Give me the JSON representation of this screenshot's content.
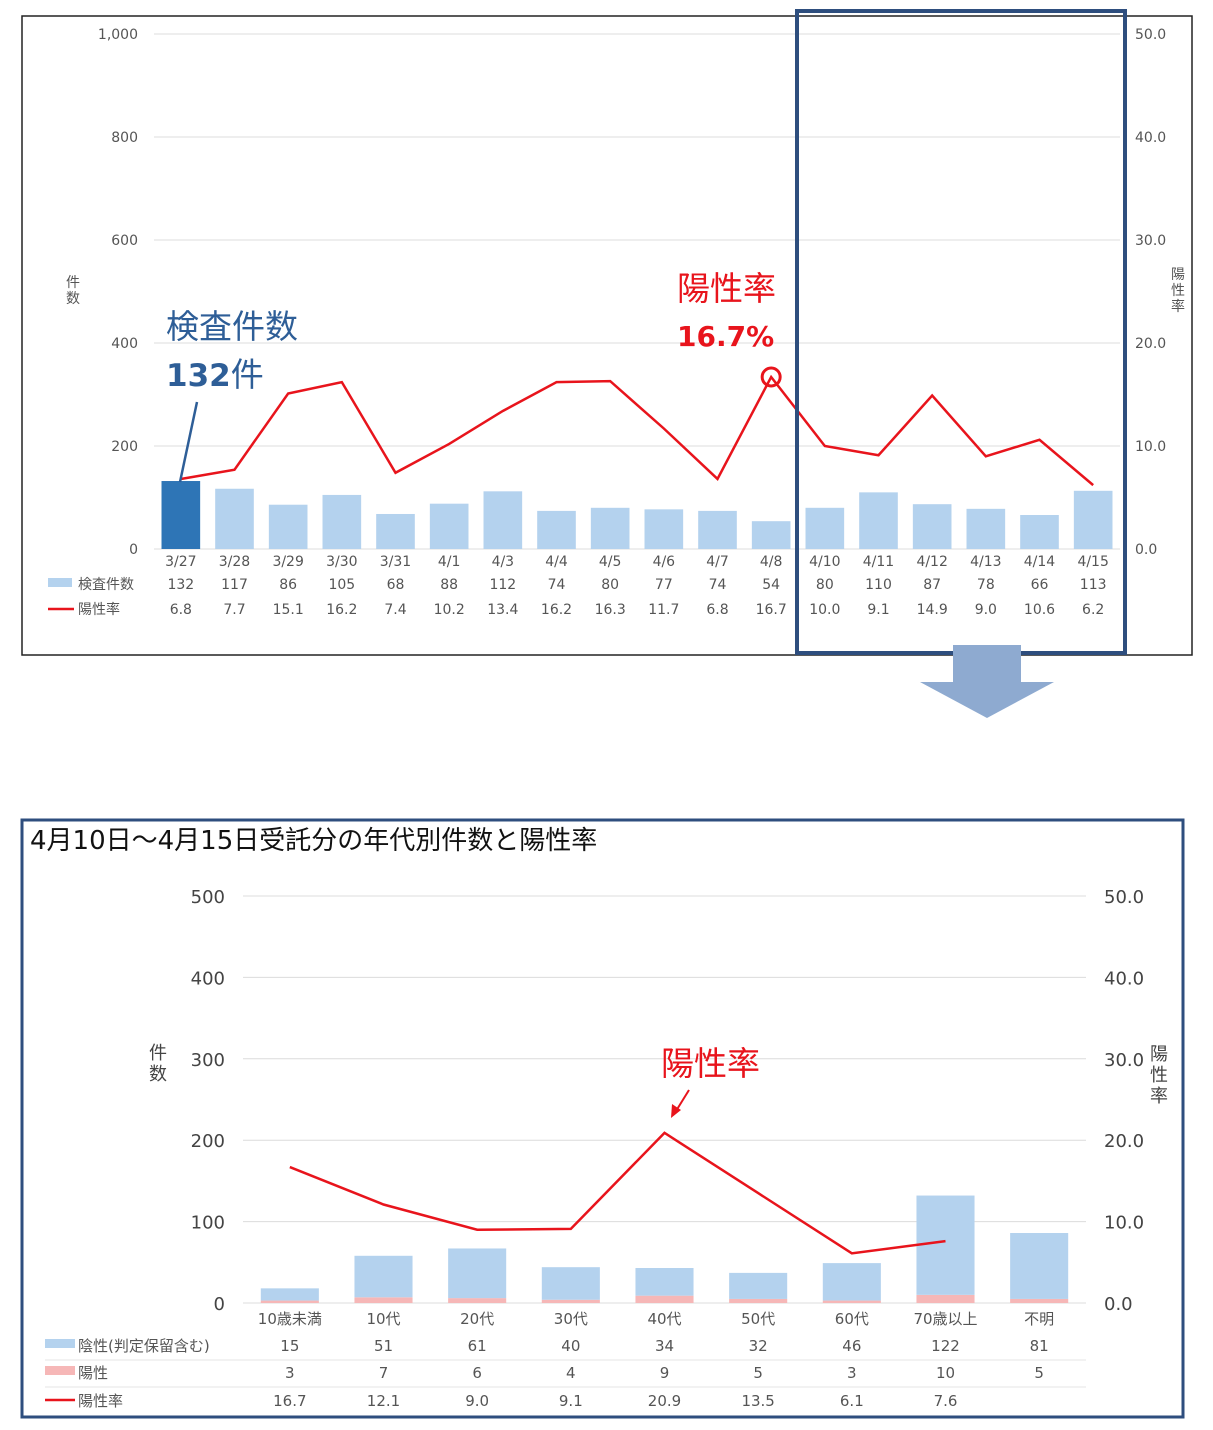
{
  "colors": {
    "bar_light": "#B4D2EE",
    "bar_highlight": "#2E75B6",
    "bar_positive": "#F6B7B7",
    "line_red": "#E8141C",
    "frame_blue": "#2E4E7E",
    "arrow_blue": "#8EAAD0",
    "annotation_blue": "#2E5E97"
  },
  "chart_data": [
    {
      "type": "bar",
      "categories": [
        "3/27",
        "3/28",
        "3/29",
        "3/30",
        "3/31",
        "4/1",
        "4/3",
        "4/4",
        "4/5",
        "4/6",
        "4/7",
        "4/8",
        "4/10",
        "4/11",
        "4/12",
        "4/13",
        "4/14",
        "4/15"
      ],
      "series": [
        {
          "name": "検査件数",
          "type": "bar",
          "axis": "left",
          "values": [
            132,
            117,
            86,
            105,
            68,
            88,
            112,
            74,
            80,
            77,
            74,
            54,
            80,
            110,
            87,
            78,
            66,
            113
          ],
          "value_labels": [
            "132",
            "117",
            "86",
            "105",
            "68",
            "88",
            "112",
            "74",
            "80",
            "77",
            "74",
            "54",
            "80",
            "110",
            "87",
            "78",
            "66",
            "113"
          ]
        },
        {
          "name": "陽性率",
          "type": "line",
          "axis": "right",
          "values": [
            6.8,
            7.7,
            15.1,
            16.2,
            7.4,
            10.2,
            13.4,
            16.2,
            16.3,
            11.7,
            6.8,
            16.7,
            10.0,
            9.1,
            14.9,
            9.0,
            10.6,
            6.2
          ],
          "value_labels": [
            "6.8",
            "7.7",
            "15.1",
            "16.2",
            "7.4",
            "10.2",
            "13.4",
            "16.2",
            "16.3",
            "11.7",
            "6.8",
            "16.7",
            "10.0",
            "9.1",
            "14.9",
            "9.0",
            "10.6",
            "6.2"
          ]
        }
      ],
      "highlight_category": "3/27",
      "ylabel": "件数",
      "ylabel2": "陽性率",
      "ylim": [
        0,
        1000
      ],
      "ylim2": [
        0,
        50
      ],
      "yticks": [
        "1,000",
        "800",
        "600",
        "400",
        "200",
        "0"
      ],
      "yticks2": [
        "50.0",
        "40.0",
        "30.0",
        "20.0",
        "10.0",
        "0.0"
      ],
      "grid": true,
      "legend": "data-table-bottom",
      "annotations": {
        "count_title": "検査件数",
        "count_value": "132",
        "count_unit": "件",
        "rate_title": "陽性率",
        "rate_value": "16.7%"
      },
      "highlight_range": [
        "4/10",
        "4/15"
      ]
    },
    {
      "type": "bar",
      "title": "4月10日～4月15日受託分の年代別件数と陽性率",
      "categories": [
        "10歳未満",
        "10代",
        "20代",
        "30代",
        "40代",
        "50代",
        "60代",
        "70歳以上",
        "不明"
      ],
      "series": [
        {
          "name": "陰性(判定保留含む)",
          "type": "bar",
          "stacked": true,
          "axis": "left",
          "values": [
            15,
            51,
            61,
            40,
            34,
            32,
            46,
            122,
            81
          ],
          "value_labels": [
            "15",
            "51",
            "61",
            "40",
            "34",
            "32",
            "46",
            "122",
            "81"
          ]
        },
        {
          "name": "陽性",
          "type": "bar",
          "stacked": true,
          "axis": "left",
          "values": [
            3,
            7,
            6,
            4,
            9,
            5,
            3,
            10,
            5
          ],
          "value_labels": [
            "3",
            "7",
            "6",
            "4",
            "9",
            "5",
            "3",
            "10",
            "5"
          ]
        },
        {
          "name": "陽性率",
          "type": "line",
          "axis": "right",
          "values": [
            16.7,
            12.1,
            9.0,
            9.1,
            20.9,
            13.5,
            6.1,
            7.6,
            null
          ],
          "value_labels": [
            "16.7",
            "12.1",
            "9.0",
            "9.1",
            "20.9",
            "13.5",
            "6.1",
            "7.6",
            ""
          ]
        }
      ],
      "ylabel": "件数",
      "ylabel2": "陽性率",
      "ylim": [
        0,
        500
      ],
      "ylim2": [
        0,
        50
      ],
      "yticks": [
        "500",
        "400",
        "300",
        "200",
        "100",
        "0"
      ],
      "yticks2": [
        "50.0",
        "40.0",
        "30.0",
        "20.0",
        "10.0",
        "0.0"
      ],
      "grid": true,
      "legend": "data-table-bottom",
      "annotations": {
        "rate_title": "陽性率"
      }
    }
  ]
}
